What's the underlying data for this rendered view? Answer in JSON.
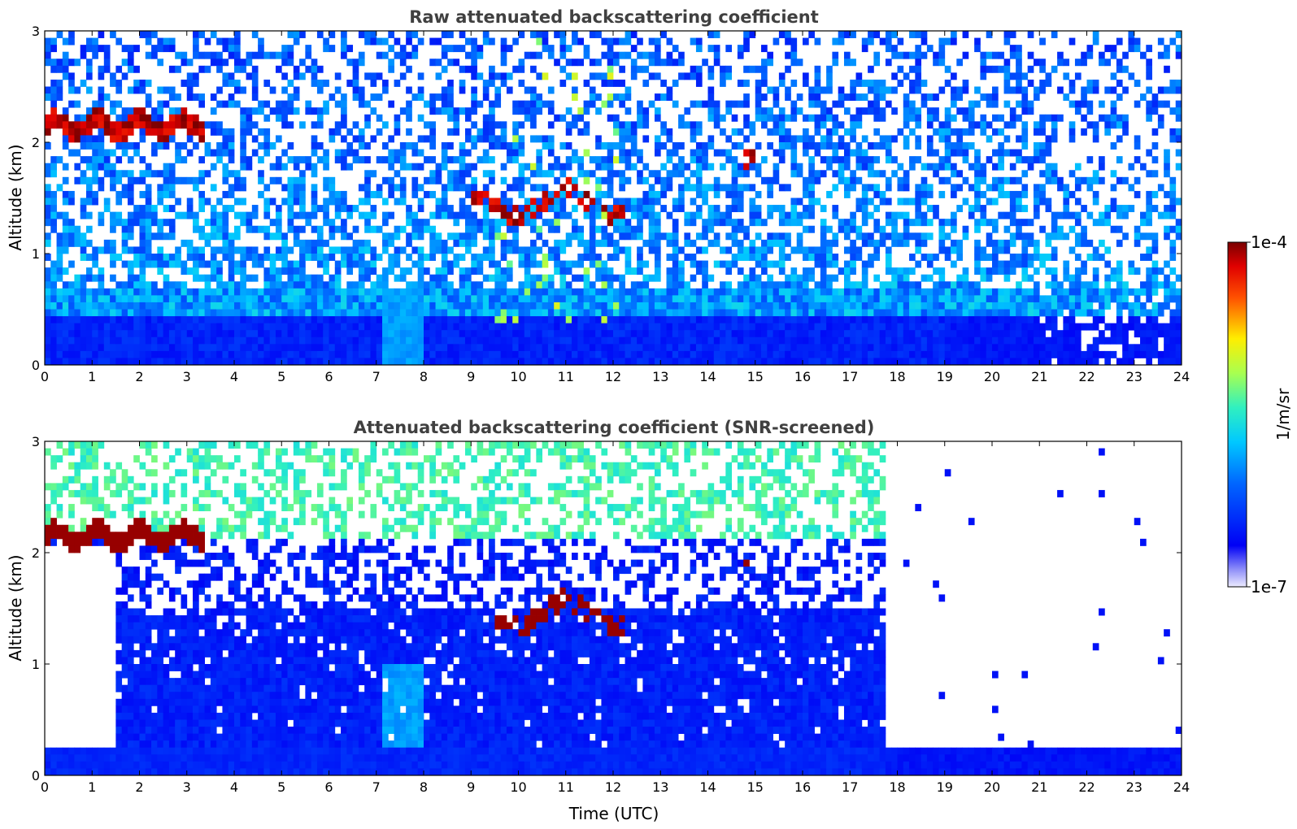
{
  "chart_data": [
    {
      "type": "heatmap",
      "title": "Raw attenuated backscattering coefficient",
      "xlabel": "",
      "ylabel": "Altitude (km)",
      "xlim": [
        0,
        24
      ],
      "ylim": [
        0,
        3
      ],
      "xticks": [
        "0",
        "1",
        "2",
        "3",
        "4",
        "5",
        "6",
        "7",
        "8",
        "9",
        "10",
        "11",
        "12",
        "13",
        "14",
        "15",
        "16",
        "17",
        "18",
        "19",
        "20",
        "21",
        "22",
        "23",
        "24"
      ],
      "yticks": [
        "0",
        "1",
        "2",
        "3"
      ],
      "colorscale": "jet",
      "features": [
        {
          "kind": "cloud",
          "x_start": 0.0,
          "x_end": 3.2,
          "altitude_km": 2.15
        },
        {
          "kind": "cloud",
          "x_start": 9.0,
          "x_end": 12.1,
          "altitude_km": 1.5
        },
        {
          "kind": "cloud",
          "x_start": 14.8,
          "x_end": 14.95,
          "altitude_km": 1.85
        },
        {
          "kind": "boundary_layer",
          "x_start": 0.0,
          "x_end": 19.0,
          "top_km": 0.5
        },
        {
          "kind": "dropouts",
          "x_start": 21.0,
          "x_end": 24.0
        }
      ]
    },
    {
      "type": "heatmap",
      "title": "Attenuated backscattering coefficient (SNR-screened)",
      "xlabel": "Time (UTC)",
      "ylabel": "Altitude (km)",
      "xlim": [
        0,
        24
      ],
      "ylim": [
        0,
        3
      ],
      "xticks": [
        "0",
        "1",
        "2",
        "3",
        "4",
        "5",
        "6",
        "7",
        "8",
        "9",
        "10",
        "11",
        "12",
        "13",
        "14",
        "15",
        "16",
        "17",
        "18",
        "19",
        "20",
        "21",
        "22",
        "23",
        "24"
      ],
      "yticks": [
        "0",
        "1",
        "2",
        "3"
      ],
      "colorscale": "jet",
      "features": [
        {
          "kind": "cloud",
          "x_start": 0.0,
          "x_end": 3.6,
          "altitude_km": 2.15
        },
        {
          "kind": "cloud",
          "x_start": 9.6,
          "x_end": 12.1,
          "altitude_km": 1.5
        },
        {
          "kind": "aerosol_layer",
          "x_start": 1.5,
          "x_end": 17.8,
          "top_km": 1.5
        },
        {
          "kind": "surface_layer",
          "x_start": 0.0,
          "x_end": 24.0,
          "top_km": 0.28
        }
      ]
    }
  ],
  "colorbar": {
    "max_label": "1e-4",
    "min_label": "1e-7",
    "unit_label": "1/m/sr",
    "scale": "log"
  }
}
